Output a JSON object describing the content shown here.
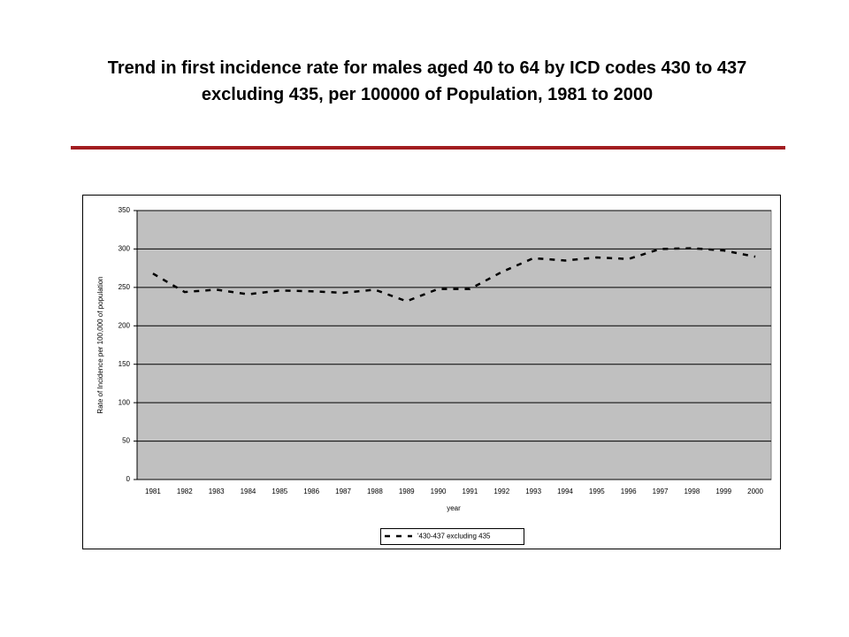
{
  "chart_data": {
    "type": "line",
    "title": "Trend in first incidence rate for males aged 40 to 64 by ICD codes 430 to 437 excluding 435, per 100000 of Population, 1981 to 2000",
    "x_label": "year",
    "y_label": "Rate of Incidence per 100,000 of population",
    "categories": [
      "1981",
      "1982",
      "1983",
      "1984",
      "1985",
      "1986",
      "1987",
      "1988",
      "1989",
      "1990",
      "1991",
      "1992",
      "1993",
      "1994",
      "1995",
      "1996",
      "1997",
      "1998",
      "1999",
      "2000"
    ],
    "series": [
      {
        "name": "'430-437 excluding 435",
        "color": "#000000",
        "values": [
          268,
          244,
          247,
          241,
          246,
          245,
          243,
          247,
          232,
          248,
          248,
          270,
          288,
          285,
          289,
          287,
          300,
          301,
          298,
          290
        ]
      }
    ],
    "ylim": [
      0,
      350
    ],
    "yticks": [
      0,
      50,
      100,
      150,
      200,
      250,
      300,
      350
    ],
    "grid": true,
    "legend": "bottom"
  }
}
